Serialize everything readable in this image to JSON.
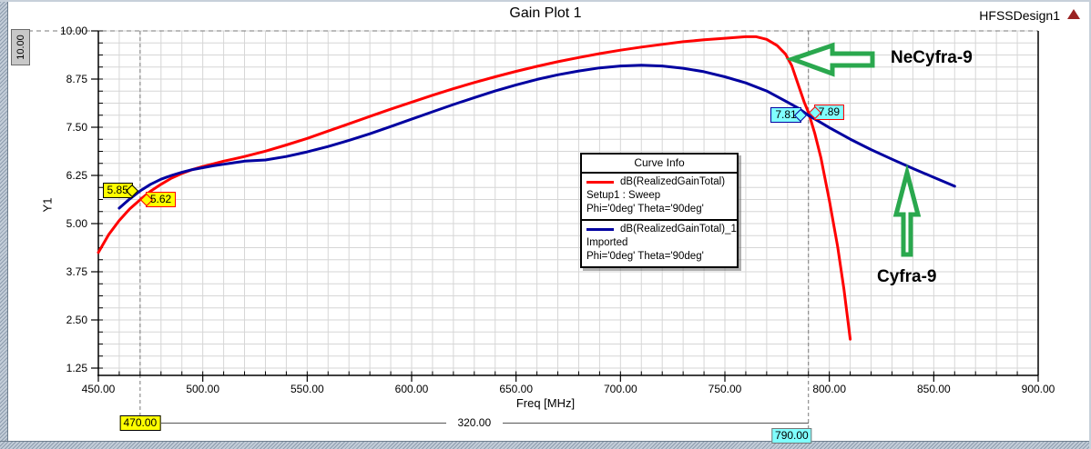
{
  "window": {
    "title": "Gain Plot 1",
    "design_label": "HFSSDesign1",
    "logo_icon": "red-triangle-icon",
    "y_axis_limit_marker": "10.00"
  },
  "chart_data": {
    "type": "line",
    "title": "Gain Plot 1",
    "xlabel": "Freq [MHz]",
    "ylabel": "Y1",
    "xlim": [
      450,
      900
    ],
    "ylim": [
      1.25,
      10.0
    ],
    "x_major_ticks": [
      450,
      500,
      550,
      600,
      650,
      700,
      750,
      800,
      850,
      900
    ],
    "x_tick_labels": [
      "450.00",
      "500.00",
      "550.00",
      "600.00",
      "650.00",
      "700.00",
      "750.00",
      "800.00",
      "850.00",
      "900.00"
    ],
    "y_major_ticks": [
      10.0,
      8.75,
      7.5,
      6.25,
      5.0,
      3.75,
      2.5,
      1.25
    ],
    "y_tick_labels": [
      "10.00",
      "8.75",
      "7.50",
      "6.25",
      "5.00",
      "3.75",
      "2.50",
      "1.25"
    ],
    "x_minor_step": 10,
    "y_minor_step": 0.3125,
    "grid": true,
    "grid_color": "#d6d6d6",
    "vertical_marker_lines": [
      470,
      790
    ],
    "y_limit_line": 10.0,
    "series": [
      {
        "name": "dB(RealizedGainTotal)",
        "setup": "Setup1 : Sweep",
        "variation": "Phi='0deg' Theta='90deg'",
        "color": "#ff0000",
        "points": [
          [
            450,
            4.25
          ],
          [
            455,
            4.72
          ],
          [
            460,
            5.08
          ],
          [
            465,
            5.38
          ],
          [
            470,
            5.62
          ],
          [
            475,
            5.84
          ],
          [
            480,
            6.02
          ],
          [
            485,
            6.18
          ],
          [
            490,
            6.3
          ],
          [
            495,
            6.4
          ],
          [
            500,
            6.48
          ],
          [
            505,
            6.55
          ],
          [
            510,
            6.62
          ],
          [
            515,
            6.68
          ],
          [
            520,
            6.74
          ],
          [
            530,
            6.88
          ],
          [
            540,
            7.04
          ],
          [
            550,
            7.21
          ],
          [
            560,
            7.4
          ],
          [
            570,
            7.59
          ],
          [
            580,
            7.78
          ],
          [
            590,
            7.97
          ],
          [
            600,
            8.15
          ],
          [
            610,
            8.33
          ],
          [
            620,
            8.5
          ],
          [
            630,
            8.66
          ],
          [
            640,
            8.81
          ],
          [
            650,
            8.95
          ],
          [
            660,
            9.08
          ],
          [
            670,
            9.2
          ],
          [
            680,
            9.31
          ],
          [
            690,
            9.41
          ],
          [
            700,
            9.5
          ],
          [
            710,
            9.58
          ],
          [
            720,
            9.65
          ],
          [
            730,
            9.72
          ],
          [
            740,
            9.77
          ],
          [
            750,
            9.81
          ],
          [
            760,
            9.85
          ],
          [
            765,
            9.85
          ],
          [
            770,
            9.78
          ],
          [
            775,
            9.62
          ],
          [
            779,
            9.4
          ],
          [
            782,
            9.1
          ],
          [
            785,
            8.62
          ],
          [
            788,
            8.15
          ],
          [
            790,
            7.89
          ],
          [
            793,
            7.35
          ],
          [
            796,
            6.7
          ],
          [
            800,
            5.6
          ],
          [
            804,
            4.4
          ],
          [
            807,
            3.3
          ],
          [
            810,
            2.0
          ]
        ]
      },
      {
        "name": "dB(RealizedGainTotal)_1",
        "setup": "Imported",
        "variation": "Phi='0deg' Theta='90deg'",
        "color": "#0000a0",
        "points": [
          [
            460,
            5.4
          ],
          [
            465,
            5.64
          ],
          [
            470,
            5.85
          ],
          [
            475,
            6.02
          ],
          [
            480,
            6.15
          ],
          [
            485,
            6.25
          ],
          [
            490,
            6.33
          ],
          [
            495,
            6.4
          ],
          [
            500,
            6.45
          ],
          [
            505,
            6.5
          ],
          [
            510,
            6.54
          ],
          [
            515,
            6.58
          ],
          [
            520,
            6.62
          ],
          [
            530,
            6.65
          ],
          [
            540,
            6.74
          ],
          [
            550,
            6.86
          ],
          [
            560,
            7.0
          ],
          [
            570,
            7.16
          ],
          [
            580,
            7.33
          ],
          [
            590,
            7.52
          ],
          [
            600,
            7.71
          ],
          [
            610,
            7.9
          ],
          [
            620,
            8.09
          ],
          [
            630,
            8.27
          ],
          [
            640,
            8.44
          ],
          [
            650,
            8.6
          ],
          [
            660,
            8.74
          ],
          [
            670,
            8.86
          ],
          [
            680,
            8.96
          ],
          [
            690,
            9.04
          ],
          [
            700,
            9.09
          ],
          [
            710,
            9.11
          ],
          [
            720,
            9.09
          ],
          [
            730,
            9.03
          ],
          [
            740,
            8.94
          ],
          [
            750,
            8.81
          ],
          [
            760,
            8.65
          ],
          [
            770,
            8.44
          ],
          [
            780,
            8.15
          ],
          [
            785,
            8.0
          ],
          [
            790,
            7.81
          ],
          [
            795,
            7.65
          ],
          [
            800,
            7.49
          ],
          [
            810,
            7.19
          ],
          [
            820,
            6.92
          ],
          [
            830,
            6.67
          ],
          [
            840,
            6.43
          ],
          [
            850,
            6.2
          ],
          [
            860,
            5.97
          ]
        ]
      }
    ]
  },
  "legend": {
    "title": "Curve Info"
  },
  "markers": [
    {
      "label": "5.85",
      "x": 470,
      "y": 5.85,
      "fill": "#ffff00",
      "border": "#000000",
      "pointer": "right"
    },
    {
      "label": "5.62",
      "x": 470,
      "y": 5.62,
      "fill": "#ffff00",
      "border": "#ff0000",
      "pointer": "left"
    },
    {
      "label": "7.81",
      "x": 790,
      "y": 7.81,
      "fill": "#80ffff",
      "border": "#0000a0",
      "pointer": "right"
    },
    {
      "label": "7.89",
      "x": 790,
      "y": 7.89,
      "fill": "#80ffff",
      "border": "#ff0000",
      "pointer": "left"
    }
  ],
  "ruler": {
    "start_label": "470.00",
    "start_fill": "#ffff00",
    "end_label": "790.00",
    "end_fill": "#80ffff",
    "distance_label": "320.00"
  },
  "annotations": [
    {
      "text": "NeCyfra-9",
      "arrow": "left-block-arrow",
      "color": "#2aa84e"
    },
    {
      "text": "Cyfra-9",
      "arrow": "up-block-arrow",
      "color": "#2aa84e"
    }
  ]
}
